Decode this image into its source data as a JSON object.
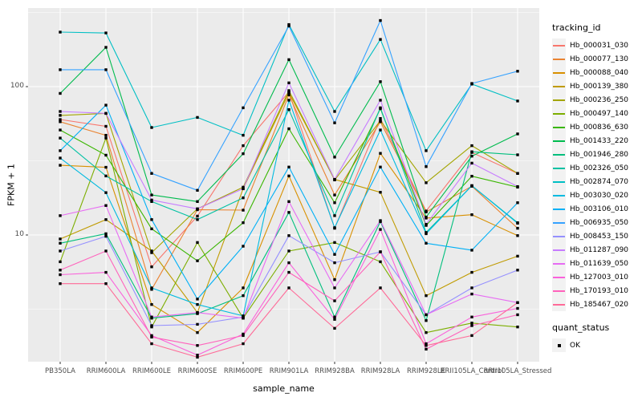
{
  "chart_data": {
    "type": "line",
    "xlabel": "sample_name",
    "ylabel": "FPKM + 1",
    "y_scale": "log10",
    "grid": true,
    "legend_position": "right",
    "legend_title": "tracking_id",
    "quant_legend": {
      "title": "quant_status",
      "items": [
        {
          "label": "OK"
        }
      ]
    },
    "yticks": [
      {
        "label": "100",
        "value": 100
      },
      {
        "label": "10",
        "value": 10
      }
    ],
    "minor_grid_values": [
      316.2,
      31.62,
      3.162
    ],
    "ylim": [
      1.45,
      345
    ],
    "categories": [
      "PB350LA",
      "RRIM600LA",
      "RRIM600LE",
      "RRIM600SE",
      "RRIM600PE",
      "RRIM901LA",
      "RRIM928BA",
      "RRIM928LA",
      "RRIM928LE",
      "RRII105LA_Control",
      "RRII105LA_Stressed"
    ],
    "point_shape": "square",
    "colors": {
      "panel": "#EBEBEB",
      "gridline": "#FFFFFF",
      "point": "#000000",
      "tick_text": "#4D4D4D",
      "tick_mark": "#333333",
      "legend_key": "#F2F2F2"
    },
    "series": [
      {
        "name": "Hb_000031_030",
        "color": "#F8766D",
        "values": [
          60,
          54,
          6.1,
          13.4,
          40,
          92,
          11.1,
          61,
          14.5,
          36,
          26
        ]
      },
      {
        "name": "Hb_000077_130",
        "color": "#EA8331",
        "values": [
          58,
          47,
          4.3,
          14.8,
          14.7,
          88,
          18.6,
          58,
          14.3,
          21.3,
          11.1
        ]
      },
      {
        "name": "Hb_000088_040",
        "color": "#D89000",
        "values": [
          29.5,
          28.6,
          3.4,
          2.2,
          4.4,
          25,
          5.0,
          35.5,
          13.0,
          13.7,
          9.9
        ]
      },
      {
        "name": "Hb_000139_380",
        "color": "#C09B00",
        "values": [
          9.4,
          12.7,
          7.8,
          3.0,
          20.5,
          91,
          23.7,
          19.4,
          3.9,
          5.6,
          7.2
        ]
      },
      {
        "name": "Hb_000236_250",
        "color": "#A3A500",
        "values": [
          64,
          66,
          7.6,
          15,
          21,
          94,
          23.5,
          59,
          22.5,
          40,
          26
        ]
      },
      {
        "name": "Hb_000497_140",
        "color": "#7CAE00",
        "values": [
          6.6,
          45,
          2.4,
          8.9,
          2.75,
          7.8,
          8.9,
          6.6,
          2.2,
          2.55,
          2.4
        ]
      },
      {
        "name": "Hb_000836_630",
        "color": "#39B600",
        "values": [
          51,
          34.5,
          11,
          6.7,
          12.1,
          52,
          16.5,
          71,
          11.6,
          24.9,
          21
        ]
      },
      {
        "name": "Hb_001433_220",
        "color": "#00BB4E",
        "values": [
          90,
          184,
          18.6,
          16.8,
          35.3,
          152,
          33.5,
          108,
          13.2,
          34,
          48
        ]
      },
      {
        "name": "Hb_001946_280",
        "color": "#00BF7D",
        "values": [
          8.8,
          10.2,
          2.75,
          2.95,
          3.9,
          14.2,
          2.8,
          12.3,
          2.65,
          36.4,
          34.7
        ]
      },
      {
        "name": "Hb_002326_050",
        "color": "#00C1A3",
        "values": [
          45,
          25,
          16.8,
          12.7,
          17.8,
          70,
          13.5,
          72,
          10.4,
          21.5,
          12.1
        ]
      },
      {
        "name": "Hb_002874_070",
        "color": "#00BFC4",
        "values": [
          233,
          230,
          53,
          62,
          47,
          262,
          68,
          208,
          37,
          104,
          80
        ]
      },
      {
        "name": "Hb_003030_020",
        "color": "#00BAE0",
        "values": [
          33,
          19.3,
          4.4,
          3.4,
          2.85,
          81,
          11.2,
          51,
          10.2,
          21.5,
          12.0
        ]
      },
      {
        "name": "Hb_003106_010",
        "color": "#00B0F6",
        "values": [
          37,
          75,
          12.7,
          3.7,
          8.4,
          28.7,
          7.4,
          28.7,
          8.8,
          7.9,
          16.5
        ]
      },
      {
        "name": "Hb_006935_050",
        "color": "#35A2FF",
        "values": [
          130,
          130,
          26,
          20,
          72,
          256,
          57,
          279,
          28.9,
          105,
          127
        ]
      },
      {
        "name": "Hb_008453_150",
        "color": "#9590FF",
        "values": [
          7.8,
          9.8,
          2.45,
          2.5,
          2.8,
          9.9,
          6.5,
          7.7,
          2.9,
          4.4,
          5.8
        ]
      },
      {
        "name": "Hb_011287_090",
        "color": "#C77CFF",
        "values": [
          68,
          66,
          17.2,
          15,
          20.5,
          106,
          23.7,
          81,
          11.8,
          30.5,
          21.2
        ]
      },
      {
        "name": "Hb_011639_050",
        "color": "#E76BF3",
        "values": [
          13.5,
          15.8,
          2.8,
          3.0,
          2.75,
          16.8,
          4.4,
          12.5,
          2.9,
          4.0,
          3.5
        ]
      },
      {
        "name": "Hb_127003_010",
        "color": "#FA62DB",
        "values": [
          5.4,
          5.6,
          2.1,
          1.55,
          2.15,
          6.5,
          2.7,
          10.9,
          1.85,
          2.8,
          3.2
        ]
      },
      {
        "name": "Hb_170193_010",
        "color": "#FF62BC",
        "values": [
          5.8,
          7.8,
          2.05,
          1.8,
          2.1,
          5.6,
          3.6,
          7.7,
          1.7,
          2.45,
          2.9
        ]
      },
      {
        "name": "Hb_185467_020",
        "color": "#FF6A98",
        "values": [
          4.7,
          4.7,
          1.85,
          1.5,
          1.85,
          4.4,
          2.35,
          4.4,
          1.8,
          2.1,
          3.5
        ]
      }
    ]
  }
}
